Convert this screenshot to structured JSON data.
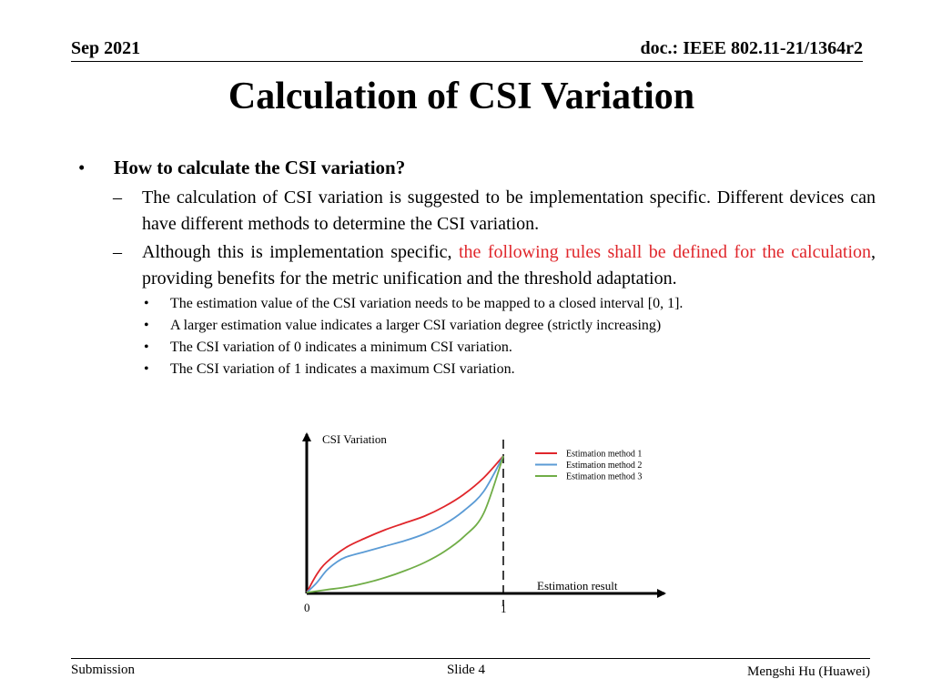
{
  "header": {
    "date": "Sep 2021",
    "doc": "doc.: IEEE 802.11-21/1364r2"
  },
  "title": "Calculation of CSI Variation",
  "bullet": {
    "symbol": "•",
    "text": "How to calculate the CSI variation?",
    "dash": "–",
    "sub1": "The calculation of CSI variation is suggested to be implementation specific. Different devices can have different methods to determine the CSI variation.",
    "sub2_prefix": "Although this is implementation specific, ",
    "sub2_red": "the following rules shall be defined for the calculation",
    "sub2_suffix": ", providing benefits for the metric unification and the threshold adaptation.",
    "subsub": [
      "The estimation value of the CSI variation needs to be mapped to a closed interval [0, 1].",
      "A larger estimation value indicates a larger CSI variation degree (strictly increasing)",
      "The CSI variation of 0 indicates a minimum CSI variation.",
      "The CSI variation of 1 indicates a maximum CSI variation."
    ]
  },
  "chart_data": {
    "type": "line",
    "ylabel": "CSI Variation",
    "xlabel": "Estimation result",
    "x_ticks": [
      "0",
      "1"
    ],
    "xlim": [
      0,
      1
    ],
    "ylim": [
      0,
      1
    ],
    "series": [
      {
        "name": "Estimation method 1",
        "color": "#e0262b",
        "x": [
          0,
          0.05,
          0.1,
          0.2,
          0.3,
          0.4,
          0.5,
          0.6,
          0.7,
          0.8,
          0.9,
          1.0
        ],
        "y": [
          0,
          0.13,
          0.22,
          0.33,
          0.4,
          0.46,
          0.51,
          0.56,
          0.63,
          0.72,
          0.84,
          1.0
        ]
      },
      {
        "name": "Estimation method 2",
        "color": "#5b9bd5",
        "x": [
          0,
          0.05,
          0.1,
          0.15,
          0.2,
          0.3,
          0.4,
          0.5,
          0.6,
          0.7,
          0.8,
          0.9,
          1.0
        ],
        "y": [
          0,
          0.07,
          0.16,
          0.22,
          0.26,
          0.3,
          0.34,
          0.38,
          0.43,
          0.5,
          0.6,
          0.74,
          1.0
        ]
      },
      {
        "name": "Estimation method 3",
        "color": "#70ad47",
        "x": [
          0,
          0.1,
          0.2,
          0.3,
          0.4,
          0.5,
          0.6,
          0.7,
          0.8,
          0.9,
          1.0
        ],
        "y": [
          0,
          0.02,
          0.04,
          0.07,
          0.11,
          0.16,
          0.22,
          0.3,
          0.41,
          0.58,
          1.0
        ]
      }
    ]
  },
  "footer": {
    "left": "Submission",
    "slide": "Slide 4",
    "author": "Mengshi Hu (Huawei)"
  }
}
